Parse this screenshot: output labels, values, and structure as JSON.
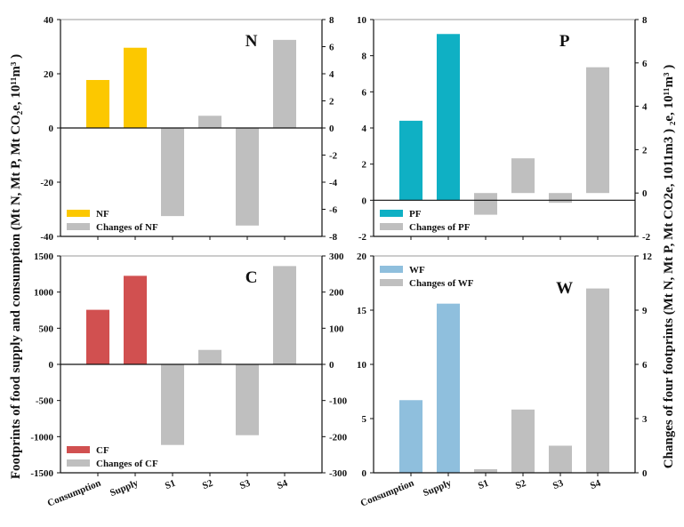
{
  "figure": {
    "left_axis_title": "Footprints of food supply and consumption  (Mt N, Mt P, Mt CO₂e, 10¹¹m³ )",
    "right_axis_title": "Changes of four footprints  (Mt N, Mt P, Mt CO2e, 1011m3 ) ₂e, 10¹¹m³ )"
  },
  "chart_data": [
    {
      "type": "bar",
      "panel": "N",
      "title": "N",
      "categories": [
        "Consumption",
        "Supply",
        "S1",
        "S2",
        "S3",
        "S4"
      ],
      "series": [
        {
          "name": "NF",
          "axis": "left",
          "color": "#FCC800",
          "values": [
            17.7,
            29.6,
            null,
            null,
            null,
            null
          ]
        },
        {
          "name": "Changes of NF",
          "axis": "right",
          "color": "#BFBFBF",
          "values": [
            null,
            null,
            -6.5,
            0.9,
            -7.2,
            6.5
          ]
        }
      ],
      "ylim_left": [
        -40,
        40
      ],
      "yticks_left": [
        -40,
        -20,
        0,
        20,
        40
      ],
      "ylim_right": [
        -8,
        8
      ],
      "yticks_right": [
        -8,
        -6,
        -4,
        -2,
        0,
        2,
        4,
        6,
        8
      ],
      "zero_line": true,
      "legend": "bottom-left",
      "show_xlabels": false
    },
    {
      "type": "bar",
      "panel": "P",
      "title": "P",
      "categories": [
        "Consumption",
        "Supply",
        "S1",
        "S2",
        "S3",
        "S4"
      ],
      "series": [
        {
          "name": "PF",
          "axis": "left",
          "color": "#0FB0C4",
          "values": [
            4.4,
            9.2,
            null,
            null,
            null,
            null
          ]
        },
        {
          "name": "Changes of PF",
          "axis": "right",
          "color": "#BFBFBF",
          "values": [
            null,
            null,
            -1.0,
            1.6,
            -0.45,
            5.8
          ]
        }
      ],
      "ylim_left": [
        -2,
        10
      ],
      "yticks_left": [
        -2,
        0,
        2,
        4,
        6,
        8,
        10
      ],
      "ylim_right": [
        -2,
        8
      ],
      "yticks_right": [
        -2,
        0,
        2,
        4,
        6,
        8
      ],
      "zero_line": true,
      "legend": "bottom-left",
      "show_xlabels": false
    },
    {
      "type": "bar",
      "panel": "C",
      "title": "C",
      "categories": [
        "Consumption",
        "Supply",
        "S1",
        "S2",
        "S3",
        "S4"
      ],
      "series": [
        {
          "name": "CF",
          "axis": "left",
          "color": "#D15050",
          "values": [
            755,
            1225,
            null,
            null,
            null,
            null
          ]
        },
        {
          "name": "Changes of CF",
          "axis": "right",
          "color": "#BFBFBF",
          "values": [
            null,
            null,
            -223,
            40,
            -196,
            272
          ]
        }
      ],
      "ylim_left": [
        -1500,
        1500
      ],
      "yticks_left": [
        -1500,
        -1000,
        -500,
        0,
        500,
        1000,
        1500
      ],
      "ylim_right": [
        -300,
        300
      ],
      "yticks_right": [
        -300,
        -200,
        -100,
        0,
        100,
        200,
        300
      ],
      "zero_line": true,
      "legend": "bottom-left",
      "show_xlabels": true
    },
    {
      "type": "bar",
      "panel": "W",
      "title": "W",
      "categories": [
        "Consumption",
        "Supply",
        "S1",
        "S2",
        "S3",
        "S4"
      ],
      "series": [
        {
          "name": "WF",
          "axis": "left",
          "color": "#8FBFDD",
          "values": [
            6.7,
            15.6,
            null,
            null,
            null,
            null
          ]
        },
        {
          "name": "Changes of WF",
          "axis": "right",
          "color": "#BFBFBF",
          "values": [
            null,
            null,
            0.2,
            3.5,
            1.5,
            10.2
          ]
        }
      ],
      "ylim_left": [
        0,
        20
      ],
      "yticks_left": [
        0,
        5,
        10,
        15,
        20
      ],
      "ylim_right": [
        0,
        12
      ],
      "yticks_right": [
        0,
        3,
        6,
        9,
        12
      ],
      "zero_line": false,
      "legend": "top-left",
      "show_xlabels": true
    }
  ]
}
